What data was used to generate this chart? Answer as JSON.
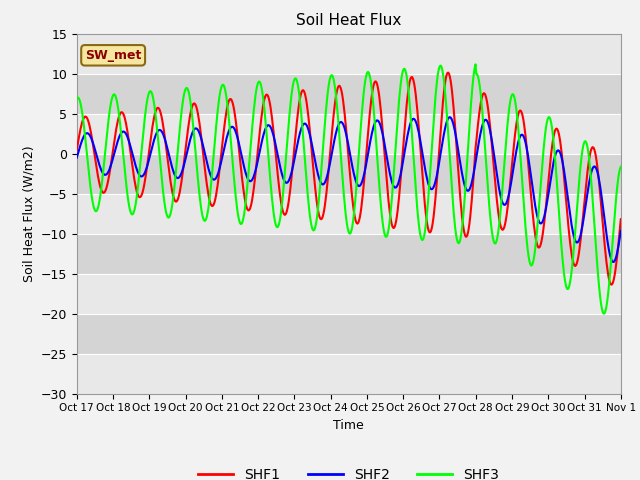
{
  "title": "Soil Heat Flux",
  "xlabel": "Time",
  "ylabel": "Soil Heat Flux (W/m2)",
  "ylim": [
    -30,
    15
  ],
  "yticks": [
    -30,
    -25,
    -20,
    -15,
    -10,
    -5,
    0,
    5,
    10,
    15
  ],
  "xtick_labels": [
    "Oct 17",
    "Oct 18",
    "Oct 19",
    "Oct 20",
    "Oct 21",
    "Oct 22",
    "Oct 23",
    "Oct 24",
    "Oct 25",
    "Oct 26",
    "Oct 27",
    "Oct 28",
    "Oct 29",
    "Oct 30",
    "Oct 31",
    "Nov 1"
  ],
  "series_colors": [
    "red",
    "blue",
    "lime"
  ],
  "series_names": [
    "SHF1",
    "SHF2",
    "SHF3"
  ],
  "annotation_text": "SW_met",
  "annotation_facecolor": "#f5e6a0",
  "annotation_edgecolor": "#8b6914",
  "annotation_textcolor": "darkred",
  "bg_outer": "#f2f2f2",
  "grid_color": "#ffffff",
  "linewidth": 1.5,
  "band_colors": [
    "#e8e8e8",
    "#d4d4d4"
  ],
  "n_days": 15,
  "n_points": 720
}
